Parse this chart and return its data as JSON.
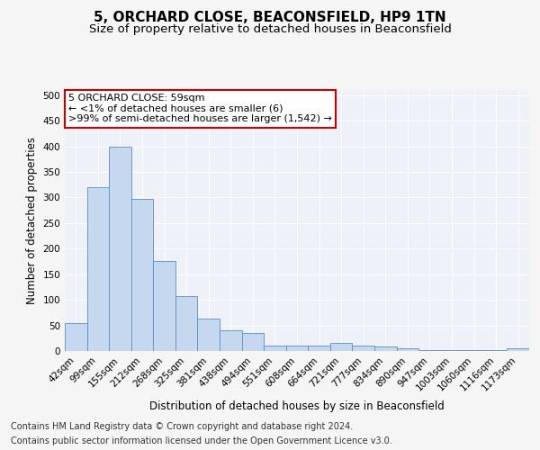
{
  "title": "5, ORCHARD CLOSE, BEACONSFIELD, HP9 1TN",
  "subtitle": "Size of property relative to detached houses in Beaconsfield",
  "xlabel": "Distribution of detached houses by size in Beaconsfield",
  "ylabel": "Number of detached properties",
  "footnote1": "Contains HM Land Registry data © Crown copyright and database right 2024.",
  "footnote2": "Contains public sector information licensed under the Open Government Licence v3.0.",
  "annotation_line1": "5 ORCHARD CLOSE: 59sqm",
  "annotation_line2": "← <1% of detached houses are smaller (6)",
  "annotation_line3": ">99% of semi-detached houses are larger (1,542) →",
  "bar_color": "#c5d8f0",
  "bar_edge_color": "#5a8fc2",
  "annotation_box_color": "#cc0000",
  "categories": [
    "42sqm",
    "99sqm",
    "155sqm",
    "212sqm",
    "268sqm",
    "325sqm",
    "381sqm",
    "438sqm",
    "494sqm",
    "551sqm",
    "608sqm",
    "664sqm",
    "721sqm",
    "777sqm",
    "834sqm",
    "890sqm",
    "947sqm",
    "1003sqm",
    "1060sqm",
    "1116sqm",
    "1173sqm"
  ],
  "values": [
    55,
    320,
    400,
    297,
    175,
    107,
    63,
    40,
    35,
    10,
    10,
    10,
    15,
    10,
    8,
    5,
    2,
    1,
    1,
    1,
    6
  ],
  "ylim": [
    0,
    510
  ],
  "yticks": [
    0,
    50,
    100,
    150,
    200,
    250,
    300,
    350,
    400,
    450,
    500
  ],
  "bg_color": "#eef2f8",
  "grid_color": "#ffffff",
  "fig_bg_color": "#f5f5f5",
  "title_fontsize": 11,
  "subtitle_fontsize": 9.5,
  "axis_label_fontsize": 8.5,
  "tick_fontsize": 7.5,
  "annotation_fontsize": 8,
  "footnote_fontsize": 7
}
